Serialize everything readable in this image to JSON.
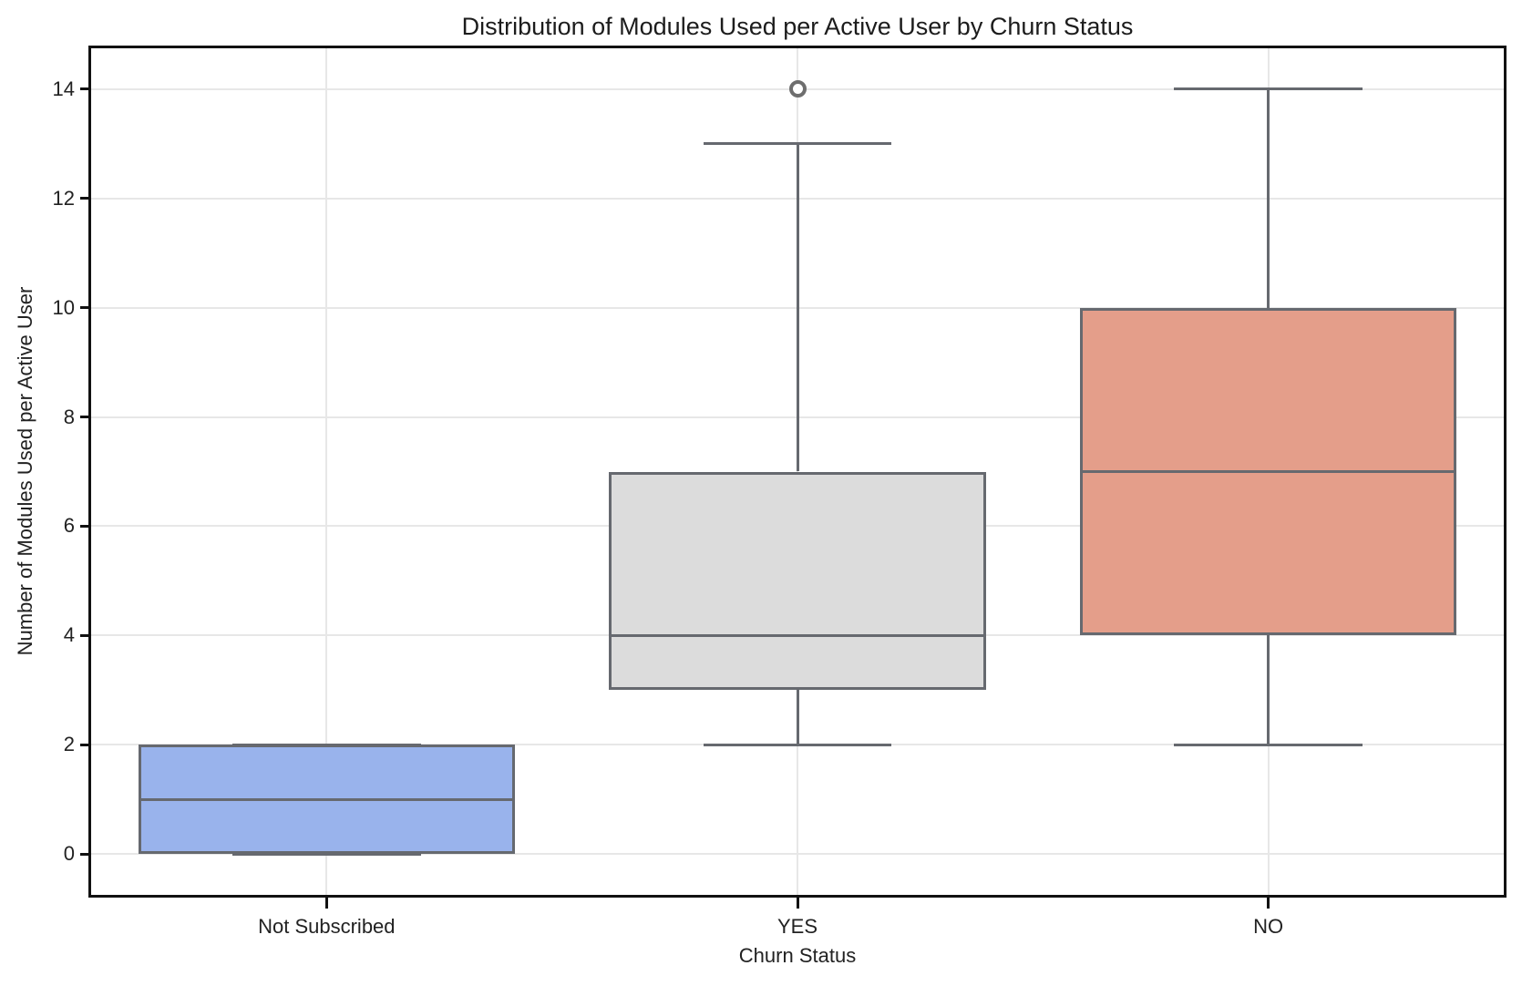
{
  "chart_data": {
    "type": "box",
    "title": "Distribution of Modules Used per Active User by Churn Status",
    "xlabel": "Churn Status",
    "ylabel": "Number of Modules Used per Active User",
    "categories": [
      "Not Subscribed",
      "YES",
      "NO"
    ],
    "yticks": [
      0,
      2,
      4,
      6,
      8,
      10,
      12,
      14
    ],
    "ylim": [
      -0.75,
      14.75
    ],
    "grid": "both",
    "legend": "none",
    "series": [
      {
        "category": "Not Subscribed",
        "slug": "not-subscribed",
        "fill_color": "#99b3ec",
        "q1": 0,
        "median": 1,
        "q3": 2,
        "whisker_low": 0,
        "whisker_high": 2,
        "outliers": []
      },
      {
        "category": "YES",
        "slug": "yes",
        "fill_color": "#dcdcdc",
        "q1": 3,
        "median": 4,
        "q3": 7,
        "whisker_low": 2,
        "whisker_high": 13,
        "outliers": [
          14
        ]
      },
      {
        "category": "NO",
        "slug": "no",
        "fill_color": "#e49e8a",
        "q1": 4,
        "median": 7,
        "q3": 10,
        "whisker_low": 2,
        "whisker_high": 14,
        "outliers": []
      }
    ],
    "colors": {
      "box_edge": "#66696f",
      "outlier_edge": "#6e6e6e",
      "gridline": "#e7e7e7",
      "spine": "#111111",
      "title_text": "#1c1c1c",
      "tick_text": "#222222"
    }
  }
}
